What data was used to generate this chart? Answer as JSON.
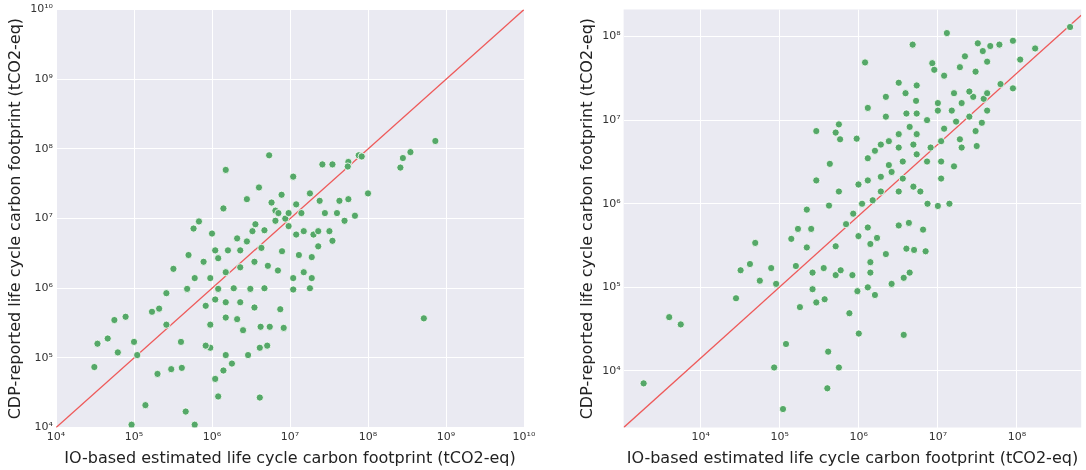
{
  "chart_data": [
    {
      "type": "scatter",
      "xlabel": "IO-based estimated life cycle carbon footprint (tCO2-eq)",
      "ylabel": "CDP-reported life cycle carbon footprint (tCO2-eq)",
      "log": "xy",
      "grid": true,
      "xlim": [
        10000.0,
        10000000000.0
      ],
      "ylim": [
        10000.0,
        10000000000.0
      ],
      "xticks": [
        {
          "value": 10000.0,
          "label": "10⁴"
        },
        {
          "value": 100000.0,
          "label": "10⁵"
        },
        {
          "value": 1000000.0,
          "label": "10⁶"
        },
        {
          "value": 10000000.0,
          "label": "10⁷"
        },
        {
          "value": 100000000.0,
          "label": "10⁸"
        },
        {
          "value": 1000000000.0,
          "label": "10⁹"
        },
        {
          "value": 10000000000.0,
          "label": "10¹⁰"
        }
      ],
      "yticks": [
        {
          "value": 10000.0,
          "label": "10⁴"
        },
        {
          "value": 100000.0,
          "label": "10⁵"
        },
        {
          "value": 1000000.0,
          "label": "10⁶"
        },
        {
          "value": 10000000.0,
          "label": "10⁷"
        },
        {
          "value": 100000000.0,
          "label": "10⁸"
        },
        {
          "value": 1000000000.0,
          "label": "10⁹"
        },
        {
          "value": 10000000000.0,
          "label": "10¹⁰"
        }
      ],
      "series": [
        {
          "type": "line",
          "color": "#ee5a5a",
          "marker": "none",
          "x": [
            10000.0,
            10000000000.0
          ],
          "values": [
            10000.0,
            10000000000.0
          ]
        },
        {
          "type": "scatter",
          "color": "#55a868",
          "marker": "circle",
          "x": [
            730000000.0,
            350000000.0,
            280000000.0,
            260000000.0,
            520000000.0,
            5400000.0,
            1500000.0,
            1400000.0,
            100000000.0,
            76000000.0,
            56000000.0,
            35000000.0,
            26000000.0,
            11000000.0,
            68000000.0,
            56000000.0,
            35000000.0,
            40000000.0,
            4000000.0,
            2800000.0,
            7800000.0,
            580000.0,
            680000.0,
            1000000.0,
            500000.0,
            320000.0,
            600000.0,
            480000.0,
            260000.0,
            170000.0,
            210000.0,
            78000.0,
            56000.0,
            46000.0,
            34000.0,
            31000.0,
            62000.0,
            100000.0,
            110000.0,
            260000.0,
            200000.0,
            300000.0,
            400000.0,
            410000.0,
            140000.0,
            460000.0,
            93000.0,
            600000.0,
            1100000.0,
            1200000.0,
            4100000.0,
            1400000.0,
            1800000.0,
            950000.0,
            830000.0,
            1500000.0,
            2900000.0,
            4100000.0,
            5100000.0,
            4200000.0,
            5500000.0,
            8300000.0,
            7500000.0,
            3500000.0,
            2500000.0,
            950000.0,
            1500000.0,
            2100000.0,
            830000.0,
            1100000.0,
            1500000.0,
            2300000.0,
            1200000.0,
            1900000.0,
            3100000.0,
            4700000.0,
            950000.0,
            1500000.0,
            2300000.0,
            3500000.0,
            5200000.0,
            7000000.0,
            11000000.0,
            11000000.0,
            18000000.0,
            19000000.0,
            15000000.0,
            13000000.0,
            7900000.0,
            4300000.0,
            2800000.0,
            2100000.0,
            1100000.0,
            1600000.0,
            2300000.0,
            3300000.0,
            4700000.0,
            6500000.0,
            9600000.0,
            12000000.0,
            15000000.0,
            20000000.0,
            23000000.0,
            19000000.0,
            23000000.0,
            32000000.0,
            28000000.0,
            24000000.0,
            18000000.0,
            12000000.0,
            8700000.0,
            6500000.0,
            5800000.0,
            43000000.0,
            50000000.0,
            3600000.0,
            780000.0,
            1200000.0,
            14000000.0,
            9600000.0,
            7100000.0,
            55000000.0,
            83000000.0
          ],
          "values": [
            130000000.0,
            90000000.0,
            74000000.0,
            54000000.0,
            370000.0,
            81000000.0,
            50000000.0,
            14000000.0,
            23000000.0,
            81000000.0,
            65000000.0,
            60000000.0,
            60000000.0,
            40000000.0,
            11000000.0,
            19000000.0,
            4800000.0,
            12000000.0,
            28000000.0,
            19000000.0,
            22000000.0,
            7200000.0,
            9100000.0,
            6100000.0,
            3000000.0,
            1900000.0,
            1400000.0,
            980000.0,
            850000.0,
            460000.0,
            510000.0,
            390000.0,
            350000.0,
            190000.0,
            160000.0,
            74000.0,
            120000.0,
            170000.0,
            110000.0,
            300000.0,
            59000.0,
            69000.0,
            170000.0,
            72000.0,
            21000.0,
            17000.0,
            11000.0,
            11000.0,
            50000.0,
            28000.0,
            27000.0,
            66000.0,
            83000.0,
            140000.0,
            150000.0,
            110000.0,
            110000.0,
            140000.0,
            150000.0,
            280000.0,
            280000.0,
            270000.0,
            500000.0,
            530000.0,
            250000.0,
            300000.0,
            380000.0,
            360000.0,
            560000.0,
            690000.0,
            630000.0,
            630000.0,
            980000.0,
            1000000.0,
            980000.0,
            1000000.0,
            1400000.0,
            1700000.0,
            2000000.0,
            2400000.0,
            2100000.0,
            1800000.0,
            1400000.0,
            960000.0,
            1000000.0,
            1400000.0,
            1700000.0,
            3000000.0,
            3400000.0,
            3800000.0,
            4700000.0,
            5200000.0,
            3500000.0,
            3500000.0,
            3500000.0,
            6600000.0,
            6800000.0,
            9300000.0,
            7800000.0,
            5900000.0,
            6600000.0,
            5900000.0,
            6600000.0,
            2800000.0,
            4000000.0,
            6600000.0,
            12000000.0,
            18000000.0,
            23000000.0,
            16000000.0,
            10000000.0,
            13000000.0,
            17000000.0,
            18000000.0,
            9300000.0,
            8300000.0,
            2400000.0,
            2700000.0,
            12000000.0,
            12000000.0,
            12000000.0,
            56000000.0,
            78000000.0
          ]
        }
      ]
    },
    {
      "type": "scatter",
      "xlabel": "IO-based estimated life cycle carbon footprint (tCO2-eq)",
      "ylabel": "CDP-reported life cycle carbon footprint (tCO2-eq)",
      "log": "xy",
      "grid": true,
      "xlim": [
        1060.0,
        650000000.0
      ],
      "ylim": [
        2100.0,
        210000000.0
      ],
      "xticks": [
        {
          "value": 10000.0,
          "label": "10⁴"
        },
        {
          "value": 100000.0,
          "label": "10⁵"
        },
        {
          "value": 1000000.0,
          "label": "10⁶"
        },
        {
          "value": 10000000.0,
          "label": "10⁷"
        },
        {
          "value": 100000000.0,
          "label": "10⁸"
        }
      ],
      "yticks": [
        {
          "value": 10000.0,
          "label": "10⁴"
        },
        {
          "value": 100000.0,
          "label": "10⁵"
        },
        {
          "value": 1000000.0,
          "label": "10⁶"
        },
        {
          "value": 10000000.0,
          "label": "10⁷"
        },
        {
          "value": 100000000.0,
          "label": "10⁸"
        }
      ],
      "series": [
        {
          "type": "line",
          "color": "#ee5a5a",
          "marker": "none",
          "x": [
            1060.0,
            650000000.0
          ],
          "values": [
            2100.0,
            180000000.0
          ]
        },
        {
          "type": "scatter",
          "color": "#55a868",
          "marker": "circle",
          "x": [
            470000000.0,
            13000000.0,
            4800000.0,
            1200000.0,
            1300000.0,
            32000000.0,
            89000000.0,
            170000000.0,
            60000000.0,
            46000000.0,
            110000000.0,
            89000000.0,
            62000000.0,
            37000000.0,
            42000000.0,
            22000000.0,
            8500000.0,
            9000000.0,
            19000000.0,
            30000000.0,
            12000000.0,
            3200000.0,
            3900000.0,
            2200000.0,
            2200000.0,
            290000.0,
            560000.0,
            510000.0,
            580000.0,
            940000.0,
            430000.0,
            290000.0,
            560000.0,
            420000.0,
            220000.0,
            170000.0,
            140000.0,
            250000.0,
            220000.0,
            49000.0,
            42000.0,
            32000.0,
            56000.0,
            78000.0,
            90000.0,
            28000.0,
            160000.0,
            260000.0,
            260000.0,
            290000.0,
            180000.0,
            370000.0,
            360000.0,
            510000.0,
            590000.0,
            760000.0,
            960000.0,
            830000.0,
            1300000.0,
            1400000.0,
            1400000.0,
            1600000.0,
            1000000.0,
            3700000.0,
            3700000.0,
            4400000.0,
            2600000.0,
            4000000.0,
            5000000.0,
            7000000.0,
            6500000.0,
            4300000.0,
            3200000.0,
            2200000.0,
            1400000.0,
            1300000.0,
            1700000.0,
            690000.0,
            990000.0,
            510000.0,
            120000.0,
            85000.0,
            410000.0,
            560000.0,
            400000.0,
            110000.0,
            4000.0,
            5600.0,
            1900.0,
            850000.0,
            1100000.0,
            1500000.0,
            1900000.0,
            990000.0,
            1300000.0,
            1900000.0,
            2600000.0,
            3600000.0,
            4900000.0,
            3200000.0,
            6000000.0,
            7400000.0,
            10000000.0,
            14000000.0,
            16000000.0,
            11000000.0,
            11000000.0,
            7300000.0,
            5400000.0,
            3600000.0,
            2400000.0,
            1600000.0,
            1900000.0,
            1300000.0,
            3200000.0,
            4900000.0,
            8100000.0,
            11000000.0,
            20000000.0,
            19000000.0,
            31000000.0,
            30000000.0,
            25000000.0,
            36000000.0,
            42000000.0,
            38000000.0,
            28000000.0,
            20000000.0,
            15000000.0,
            10000000.0,
            7300000.0,
            5400000.0,
            4000000.0,
            4400000.0,
            5400000.0,
            3200000.0,
            2400000.0,
            12000000.0,
            17000000.0,
            10000000.0,
            16000000.0,
            25000000.0,
            5300000.0,
            5400000.0,
            42000000.0
          ],
          "values": [
            130000000.0,
            110000000.0,
            80000000.0,
            49000000.0,
            14000000.0,
            83000000.0,
            89000000.0,
            72000000.0,
            80000000.0,
            77000000.0,
            53000000.0,
            24000000.0,
            27000000.0,
            67000000.0,
            50000000.0,
            58000000.0,
            48000000.0,
            40000000.0,
            43000000.0,
            38000000.0,
            34000000.0,
            28000000.0,
            21000000.0,
            19000000.0,
            11000000.0,
            7400000.0,
            8900000.0,
            7100000.0,
            5900000.0,
            6000000.0,
            3000000.0,
            1900000.0,
            1400000.0,
            950000.0,
            850000.0,
            500000.0,
            380000.0,
            500000.0,
            300000.0,
            340000.0,
            190000.0,
            160000.0,
            120000.0,
            170000.0,
            110000.0,
            74000.0,
            180000.0,
            150000.0,
            95000.0,
            66000.0,
            58000.0,
            72000.0,
            170000.0,
            140000.0,
            160000.0,
            49000.0,
            90000.0,
            140000.0,
            100000.0,
            150000.0,
            200000.0,
            81000.0,
            28000.0,
            27000.0,
            130000.0,
            150000.0,
            110000.0,
            290000.0,
            280000.0,
            270000.0,
            490000.0,
            590000.0,
            550000.0,
            250000.0,
            330000.0,
            520000.0,
            390000.0,
            570000.0,
            410000.0,
            310000.0,
            21000.0,
            11000.0,
            17000.0,
            11000.0,
            6200.0,
            3500.0,
            44000.0,
            36000.0,
            7100.0,
            760000.0,
            1000000.0,
            1100000.0,
            1400000.0,
            1700000.0,
            1900000.0,
            2100000.0,
            2400000.0,
            2000000.0,
            1600000.0,
            1400000.0,
            1400000.0,
            1000000.0,
            940000.0,
            1000000.0,
            2800000.0,
            2000000.0,
            3200000.0,
            3200000.0,
            3900000.0,
            3200000.0,
            2900000.0,
            4300000.0,
            5100000.0,
            3500000.0,
            4700000.0,
            5100000.0,
            4700000.0,
            5600000.0,
            4700000.0,
            5900000.0,
            4900000.0,
            7400000.0,
            11000000.0,
            9300000.0,
            13000000.0,
            18000000.0,
            19000000.0,
            16000000.0,
            13000000.0,
            13000000.0,
            10000000.0,
            12000000.0,
            12000000.0,
            8300000.0,
            6800000.0,
            6800000.0,
            5600000.0,
            7900000.0,
            9600000.0,
            16000000.0,
            21000000.0,
            22000000.0,
            17000000.0,
            26000000.0,
            21000000.0
          ]
        }
      ]
    }
  ]
}
